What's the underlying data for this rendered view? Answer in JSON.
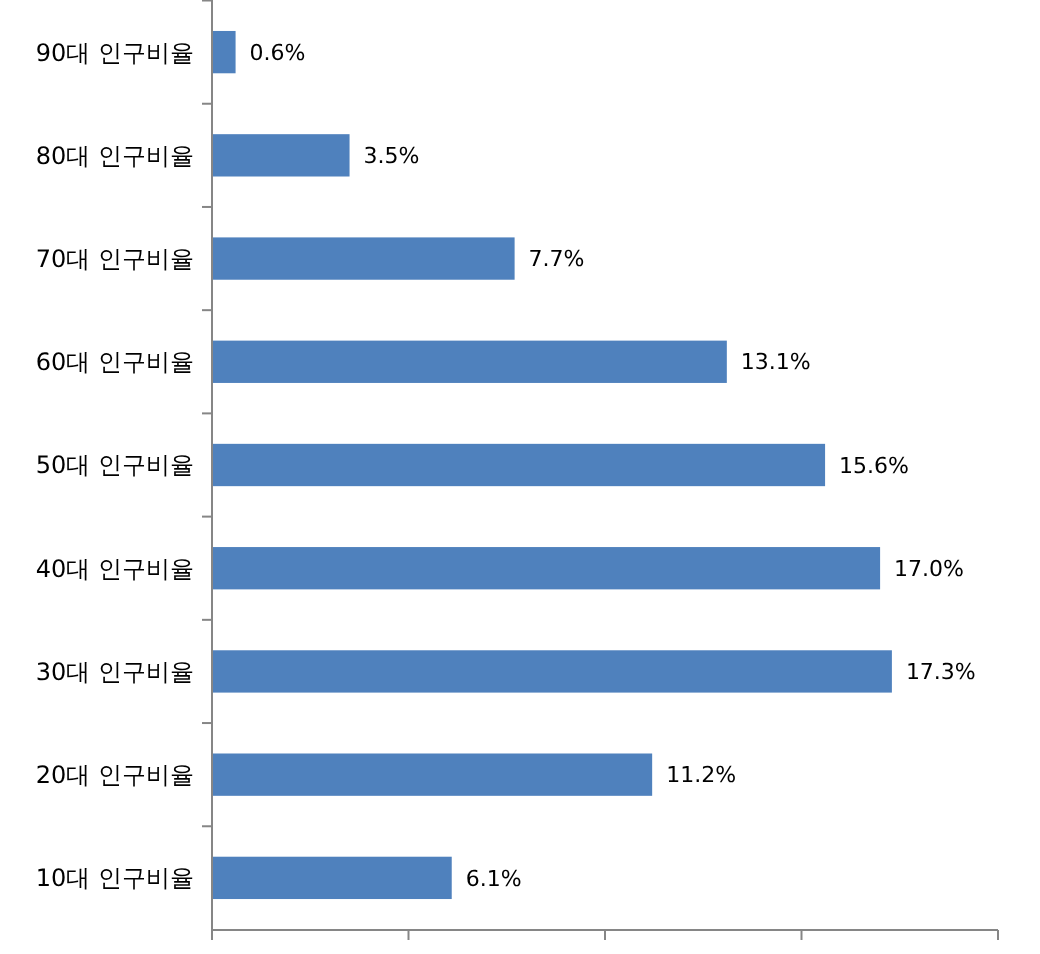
{
  "chart_data": {
    "type": "bar",
    "orientation": "horizontal",
    "categories": [
      "90대 인구비율",
      "80대 인구비율",
      "70대 인구비율",
      "60대 인구비율",
      "50대 인구비율",
      "40대 인구비율",
      "30대 인구비율",
      "20대 인구비율",
      "10대 인구비율"
    ],
    "values": [
      0.6,
      3.5,
      7.7,
      13.1,
      15.6,
      17.0,
      17.3,
      11.2,
      6.1
    ],
    "value_labels": [
      "0.6%",
      "3.5%",
      "7.7%",
      "13.1%",
      "15.6%",
      "17.0%",
      "17.3%",
      "11.2%",
      "6.1%"
    ],
    "color": "#4f81bd",
    "xlim": [
      0,
      20
    ],
    "xticks": [
      {
        "value": 0,
        "label": null
      },
      {
        "value": 5,
        "label": null
      },
      {
        "value": 10,
        "label": null
      },
      {
        "value": 15,
        "label": null
      },
      {
        "value": 20,
        "label": null
      }
    ],
    "tick_labels": "y",
    "grid": false
  }
}
